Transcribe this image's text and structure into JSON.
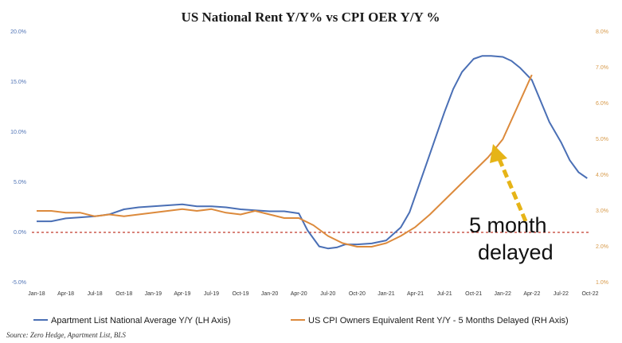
{
  "chart_data": {
    "type": "line",
    "title": "US National Rent Y/Y%  vs CPI OER Y/Y %",
    "source": "Source: Zero Hedge, Apartment List, BLS",
    "x_ticks": [
      "Jan-18",
      "Apr-18",
      "Jul-18",
      "Oct-18",
      "Jan-19",
      "Apr-19",
      "Jul-19",
      "Oct-19",
      "Jan-20",
      "Apr-20",
      "Jul-20",
      "Oct-20",
      "Jan-21",
      "Apr-21",
      "Jul-21",
      "Oct-21",
      "Jan-22",
      "Apr-22",
      "Jul-22",
      "Oct-22"
    ],
    "left_axis": {
      "ticks": [
        "20.0%",
        "15.0%",
        "10.0%",
        "5.0%",
        "0.0%",
        "-5.0%"
      ],
      "range": [
        -5,
        20
      ]
    },
    "right_axis": {
      "ticks": [
        "8.0%",
        "7.0%",
        "6.0%",
        "5.0%",
        "4.0%",
        "3.0%",
        "2.0%",
        "1.0%"
      ],
      "range": [
        1,
        8
      ]
    },
    "reference_line": {
      "axis": "left",
      "value": 0
    },
    "grid": false,
    "legend_position": "bottom",
    "colors": {
      "series_left": "#4a6fb5",
      "series_right": "#dc8a3c",
      "reference_line": "#c0392b",
      "arrow": "#e6b417"
    },
    "series": [
      {
        "name": "Apartment List  National Average Y/Y (LH Axis)",
        "axis": "left",
        "x_index": [
          0,
          0.5,
          1,
          1.5,
          2,
          2.5,
          3,
          3.5,
          4,
          4.5,
          5,
          5.5,
          6,
          6.5,
          7,
          7.5,
          8,
          8.5,
          9,
          9.3,
          9.7,
          10,
          10.3,
          10.6,
          11,
          11.5,
          12,
          12.5,
          12.8,
          13.1,
          13.4,
          13.7,
          14,
          14.3,
          14.6,
          15,
          15.3,
          15.6,
          16,
          16.3,
          16.6,
          17,
          17.3,
          17.6,
          18,
          18.3,
          18.6,
          18.9
        ],
        "values": [
          1.1,
          1.1,
          1.4,
          1.5,
          1.6,
          1.8,
          2.3,
          2.5,
          2.6,
          2.7,
          2.8,
          2.6,
          2.6,
          2.5,
          2.3,
          2.2,
          2.1,
          2.1,
          1.9,
          0.2,
          -1.4,
          -1.6,
          -1.5,
          -1.2,
          -1.2,
          -1.1,
          -0.8,
          0.5,
          2.0,
          4.5,
          7.0,
          9.5,
          12.0,
          14.3,
          16.0,
          17.3,
          17.6,
          17.6,
          17.5,
          17.1,
          16.4,
          15.2,
          13.1,
          11.0,
          9.0,
          7.2,
          6.0,
          5.4
        ]
      },
      {
        "name": "US CPI Owners Equivalent Rent Y/Y - 5 Months Delayed (RH Axis)",
        "axis": "right",
        "x_index": [
          0,
          0.5,
          1,
          1.5,
          2,
          2.5,
          3,
          3.5,
          4,
          4.5,
          5,
          5.5,
          6,
          6.5,
          7,
          7.5,
          8,
          8.5,
          9,
          9.5,
          10,
          10.5,
          11,
          11.5,
          12,
          12.5,
          13,
          13.5,
          14,
          14.5,
          15,
          15.5,
          16,
          16.5,
          17
        ],
        "values": [
          3.0,
          3.0,
          2.95,
          2.95,
          2.85,
          2.9,
          2.85,
          2.9,
          2.95,
          3.0,
          3.05,
          3.0,
          3.05,
          2.95,
          2.9,
          3.0,
          2.9,
          2.8,
          2.8,
          2.6,
          2.3,
          2.1,
          2.0,
          2.0,
          2.1,
          2.3,
          2.55,
          2.9,
          3.3,
          3.7,
          4.1,
          4.5,
          5.0,
          5.9,
          6.8
        ]
      }
    ],
    "annotation": {
      "line1": "5 month",
      "line2": "delayed"
    }
  }
}
